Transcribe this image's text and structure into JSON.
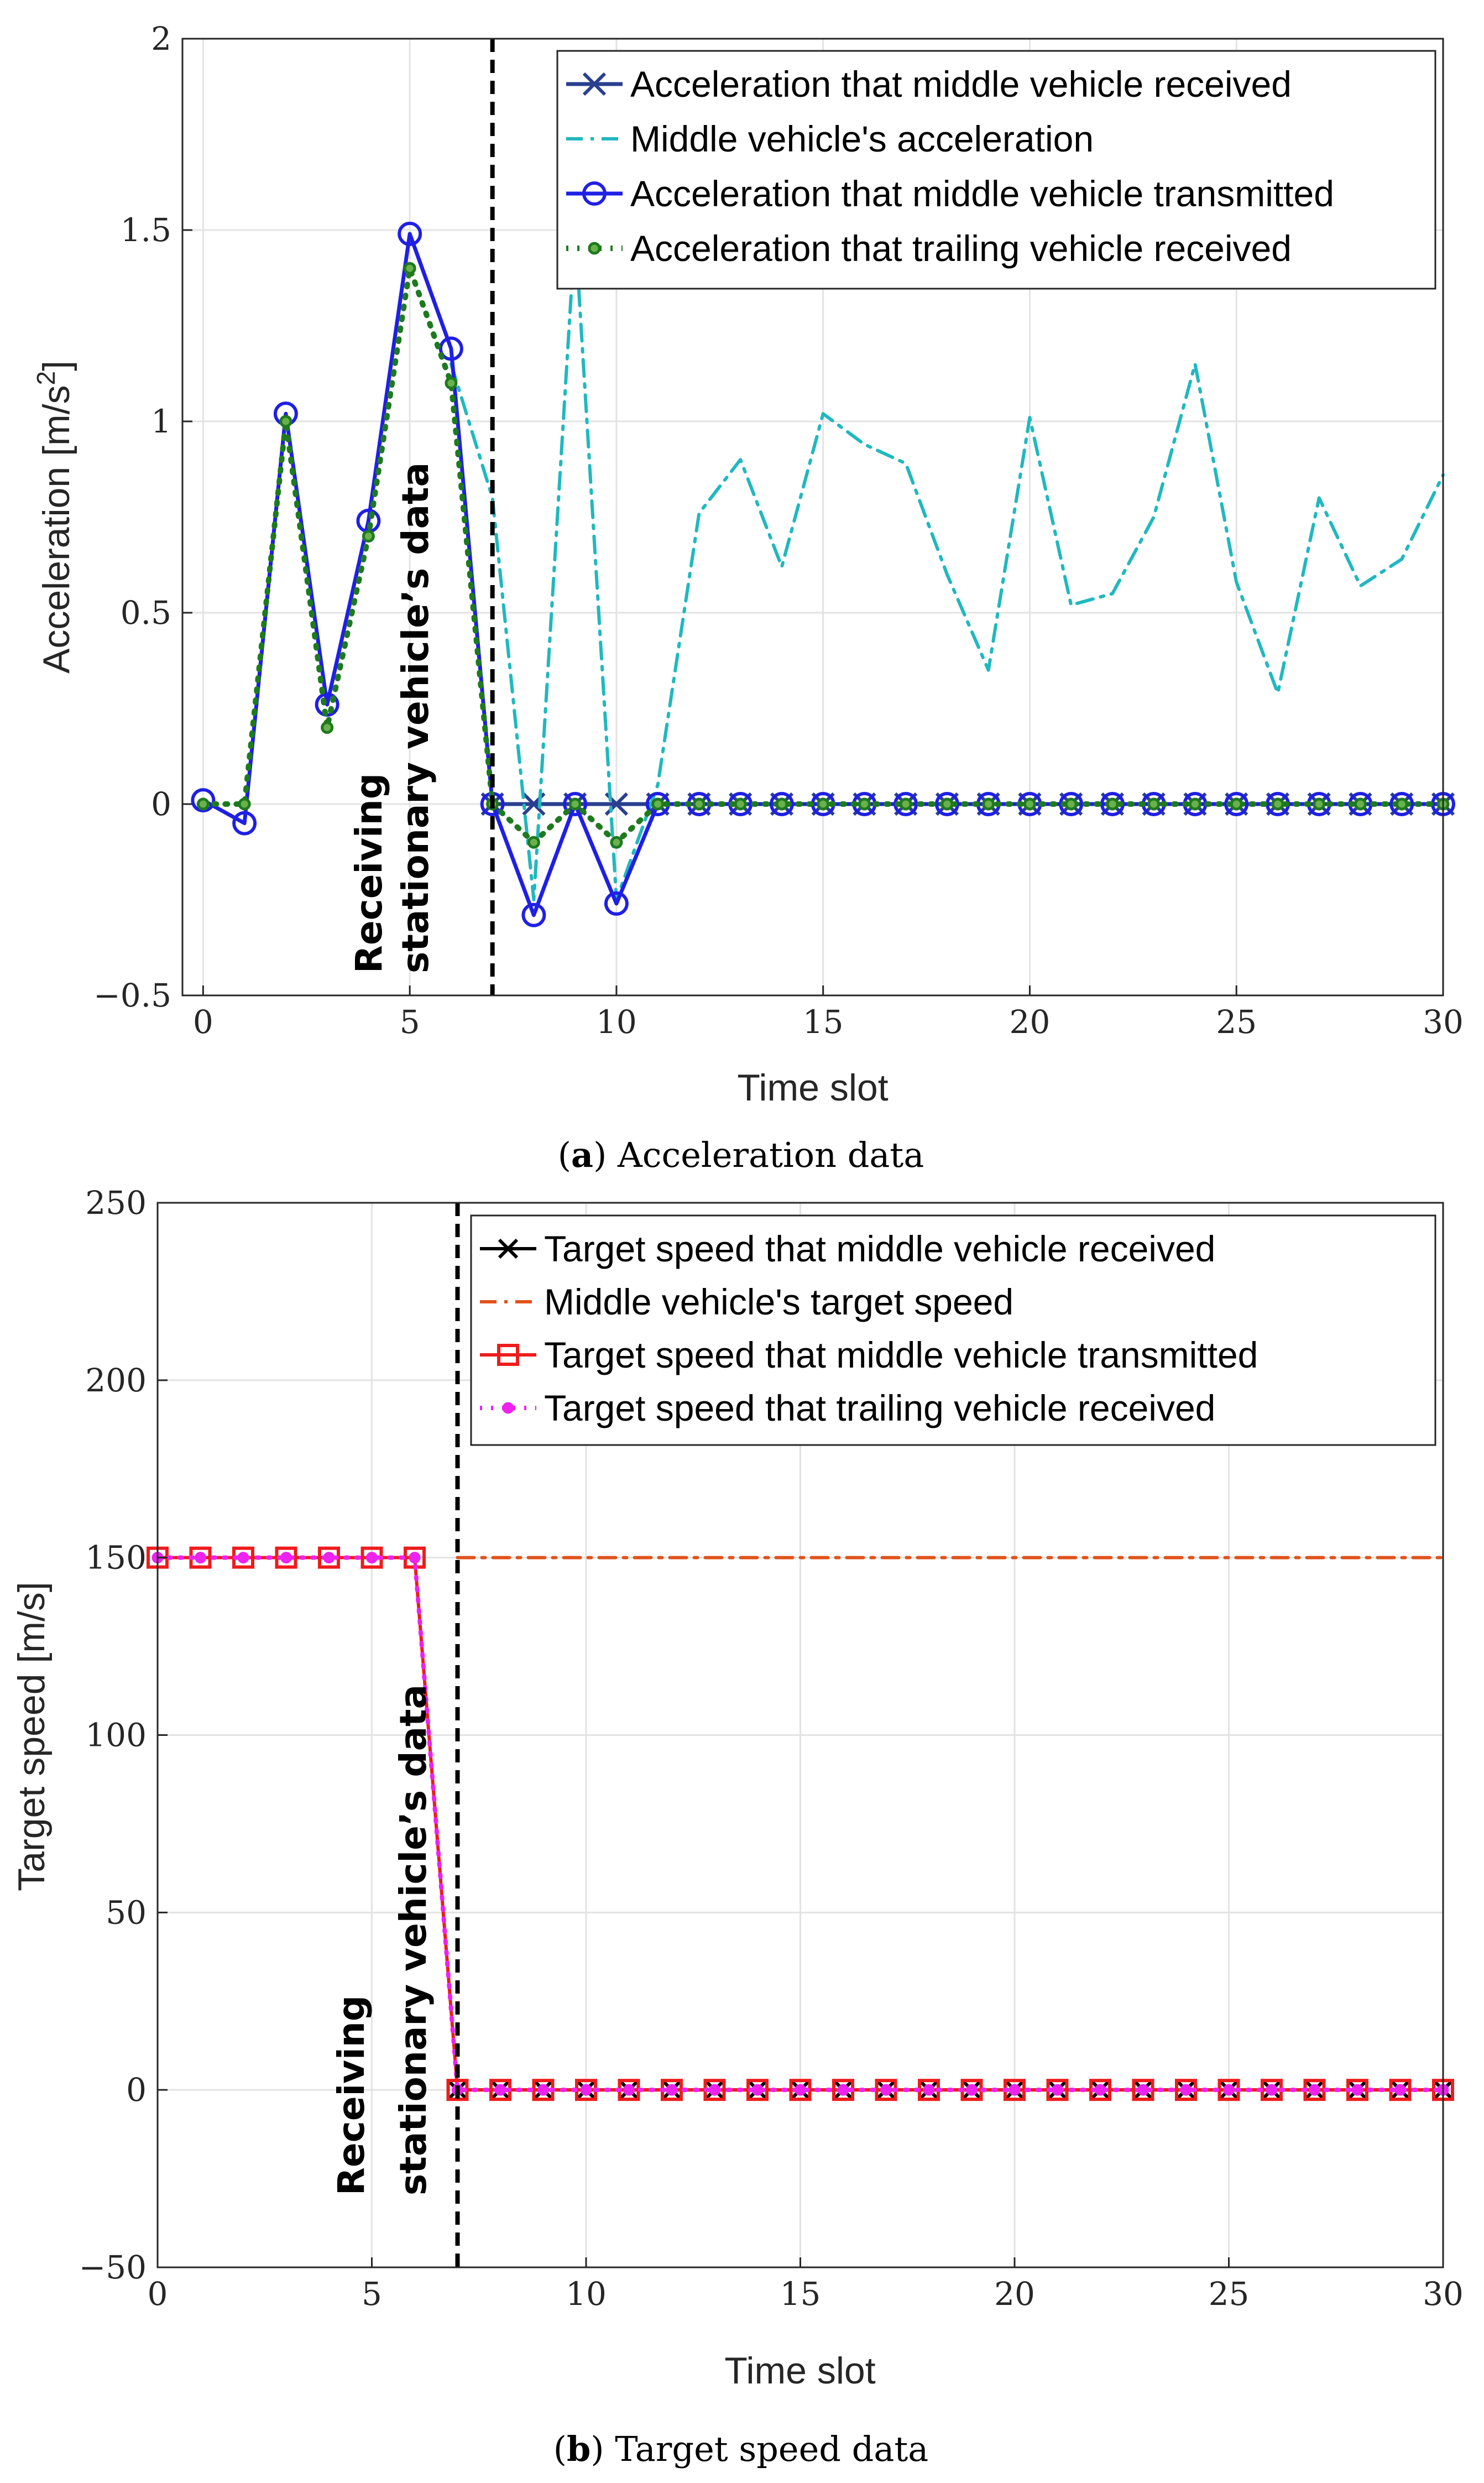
{
  "chart_data": [
    {
      "type": "line",
      "title": "",
      "caption_label": "a",
      "caption_text": "Acceleration data",
      "xlabel": "Time slot",
      "ylabel": "Acceleration [m/s²]",
      "ylabel_base": "Acceleration [m/s",
      "ylabel_sup": "2",
      "ylabel_end": "]",
      "xlim": [
        -0.5,
        30
      ],
      "ylim": [
        -0.5,
        2
      ],
      "xticks": [
        0,
        5,
        10,
        15,
        20,
        25,
        30
      ],
      "yticks": [
        -0.5,
        0,
        0.5,
        1,
        1.5,
        2
      ],
      "xtick_labels": [
        "0",
        "5",
        "10",
        "15",
        "20",
        "25",
        "30"
      ],
      "ytick_labels": [
        "−0.5",
        "0",
        "0.5",
        "1",
        "1.5",
        "2"
      ],
      "grid": true,
      "legend_position": "top-right",
      "vline": {
        "x": 7,
        "style": "dashed",
        "color": "#000000"
      },
      "annotation": [
        "Receiving",
        "stationary vehicle’s data"
      ],
      "series": [
        {
          "name": "Acceleration that middle vehicle received",
          "color": "#2a3f8f",
          "style": "solid",
          "marker": "x",
          "x": [
            7,
            8,
            9,
            10,
            11,
            12,
            13,
            14,
            15,
            16,
            17,
            18,
            19,
            20,
            21,
            22,
            23,
            24,
            25,
            26,
            27,
            28,
            29,
            30
          ],
          "y": [
            0,
            0,
            0,
            0,
            0,
            0,
            0,
            0,
            0,
            0,
            0,
            0,
            0,
            0,
            0,
            0,
            0,
            0,
            0,
            0,
            0,
            0,
            0,
            0
          ]
        },
        {
          "name": "Middle vehicle's acceleration",
          "color": "#20b8bf",
          "style": "dashdot",
          "marker": "none",
          "x": [
            6,
            7,
            8,
            9,
            10,
            11,
            12,
            13,
            14,
            15,
            16,
            17,
            18,
            19,
            20,
            21,
            22,
            23,
            24,
            25,
            26,
            27,
            28,
            29,
            30
          ],
          "y": [
            1.15,
            0.8,
            -0.25,
            1.5,
            -0.25,
            0.05,
            0.76,
            0.9,
            0.62,
            1.02,
            0.94,
            0.89,
            0.6,
            0.35,
            1.01,
            0.52,
            0.55,
            0.75,
            1.15,
            0.58,
            0.29,
            0.8,
            0.57,
            0.64,
            0.86
          ]
        },
        {
          "name": "Acceleration that middle vehicle transmitted",
          "color": "#1f1fe6",
          "style": "solid",
          "marker": "o",
          "x": [
            0,
            1,
            2,
            3,
            4,
            5,
            6,
            7,
            8,
            9,
            10,
            11,
            12,
            13,
            14,
            15,
            16,
            17,
            18,
            19,
            20,
            21,
            22,
            23,
            24,
            25,
            26,
            27,
            28,
            29,
            30
          ],
          "y": [
            0.01,
            -0.05,
            1.02,
            0.26,
            0.74,
            1.49,
            1.19,
            0,
            -0.29,
            0,
            -0.26,
            0,
            0,
            0,
            0,
            0,
            0,
            0,
            0,
            0,
            0,
            0,
            0,
            0,
            0,
            0,
            0,
            0,
            0,
            0,
            0
          ]
        },
        {
          "name": "Acceleration that trailing vehicle received",
          "color": "#1e7a1e",
          "style": "dotted",
          "marker": "dot",
          "x": [
            0,
            1,
            2,
            3,
            4,
            5,
            6,
            7,
            8,
            9,
            10,
            11,
            12,
            13,
            14,
            15,
            16,
            17,
            18,
            19,
            20,
            21,
            22,
            23,
            24,
            25,
            26,
            27,
            28,
            29,
            30
          ],
          "y": [
            0,
            0,
            1.0,
            0.2,
            0.7,
            1.4,
            1.1,
            0,
            -0.1,
            0,
            -0.1,
            0,
            0,
            0,
            0,
            0,
            0,
            0,
            0,
            0,
            0,
            0,
            0,
            0,
            0,
            0,
            0,
            0,
            0,
            0,
            0
          ]
        }
      ]
    },
    {
      "type": "line",
      "title": "",
      "caption_label": "b",
      "caption_text": "Target speed data",
      "xlabel": "Time slot",
      "ylabel": "Target speed [m/s]",
      "xlim": [
        0,
        30
      ],
      "ylim": [
        -50,
        250
      ],
      "xticks": [
        0,
        5,
        10,
        15,
        20,
        25,
        30
      ],
      "yticks": [
        -50,
        0,
        50,
        100,
        150,
        200,
        250
      ],
      "xtick_labels": [
        "0",
        "5",
        "10",
        "15",
        "20",
        "25",
        "30"
      ],
      "ytick_labels": [
        "−50",
        "0",
        "50",
        "100",
        "150",
        "200",
        "250"
      ],
      "grid": true,
      "legend_position": "top-right",
      "vline": {
        "x": 7,
        "style": "dashed",
        "color": "#000000"
      },
      "annotation": [
        "Receiving",
        "stationary vehicle’s data"
      ],
      "series": [
        {
          "name": "Target speed that middle vehicle received",
          "color": "#000000",
          "style": "solid",
          "marker": "x",
          "x": [
            7,
            8,
            9,
            10,
            11,
            12,
            13,
            14,
            15,
            16,
            17,
            18,
            19,
            20,
            21,
            22,
            23,
            24,
            25,
            26,
            27,
            28,
            29,
            30
          ],
          "y": [
            0,
            0,
            0,
            0,
            0,
            0,
            0,
            0,
            0,
            0,
            0,
            0,
            0,
            0,
            0,
            0,
            0,
            0,
            0,
            0,
            0,
            0,
            0,
            0
          ]
        },
        {
          "name": "Middle vehicle's target speed",
          "color": "#e0531b",
          "style": "dashdot",
          "marker": "none",
          "x": [
            7,
            30
          ],
          "y": [
            150,
            150
          ]
        },
        {
          "name": "Target speed that middle vehicle transmitted",
          "color": "#ee1c1c",
          "style": "solid",
          "marker": "square",
          "x": [
            0,
            1,
            2,
            3,
            4,
            5,
            6,
            7,
            8,
            9,
            10,
            11,
            12,
            13,
            14,
            15,
            16,
            17,
            18,
            19,
            20,
            21,
            22,
            23,
            24,
            25,
            26,
            27,
            28,
            29,
            30
          ],
          "y": [
            150,
            150,
            150,
            150,
            150,
            150,
            150,
            0,
            0,
            0,
            0,
            0,
            0,
            0,
            0,
            0,
            0,
            0,
            0,
            0,
            0,
            0,
            0,
            0,
            0,
            0,
            0,
            0,
            0,
            0,
            0
          ]
        },
        {
          "name": "Target speed that trailing vehicle received",
          "color": "#ee22ee",
          "style": "dotted",
          "marker": "dot",
          "x": [
            0,
            1,
            2,
            3,
            4,
            5,
            6,
            7,
            8,
            9,
            10,
            11,
            12,
            13,
            14,
            15,
            16,
            17,
            18,
            19,
            20,
            21,
            22,
            23,
            24,
            25,
            26,
            27,
            28,
            29,
            30
          ],
          "y": [
            150,
            150,
            150,
            150,
            150,
            150,
            150,
            0,
            0,
            0,
            0,
            0,
            0,
            0,
            0,
            0,
            0,
            0,
            0,
            0,
            0,
            0,
            0,
            0,
            0,
            0,
            0,
            0,
            0,
            0,
            0
          ]
        }
      ]
    }
  ]
}
